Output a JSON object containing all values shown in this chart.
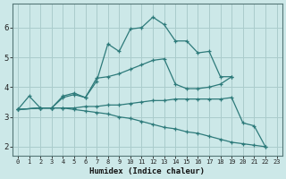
{
  "xlabel": "Humidex (Indice chaleur)",
  "xlim": [
    -0.5,
    23.5
  ],
  "ylim": [
    1.7,
    6.8
  ],
  "bg_color": "#cce8e8",
  "line_color": "#2d7a7a",
  "grid_color": "#aacccc",
  "series": [
    {
      "x": [
        0,
        1,
        2,
        3,
        4,
        5,
        6,
        7,
        8,
        9,
        10,
        11,
        12,
        13,
        14,
        15,
        16,
        17,
        18,
        19
      ],
      "y": [
        3.25,
        3.7,
        3.3,
        3.3,
        3.7,
        3.8,
        3.65,
        4.2,
        5.45,
        5.2,
        5.95,
        6.0,
        6.35,
        6.1,
        5.55,
        5.55,
        5.15,
        5.2,
        4.35,
        4.35
      ]
    },
    {
      "x": [
        0,
        2,
        3,
        4,
        5,
        6,
        7,
        8,
        9,
        10,
        11,
        12,
        13,
        14,
        15,
        16,
        17,
        18,
        19
      ],
      "y": [
        3.25,
        3.3,
        3.3,
        3.65,
        3.75,
        3.65,
        4.3,
        4.35,
        4.45,
        4.6,
        4.75,
        4.9,
        4.95,
        4.1,
        3.95,
        3.95,
        4.0,
        4.1,
        4.35
      ]
    },
    {
      "x": [
        0,
        2,
        3,
        4,
        5,
        6,
        7,
        8,
        9,
        10,
        11,
        12,
        13,
        14,
        15,
        16,
        17,
        18,
        19,
        20,
        21,
        22
      ],
      "y": [
        3.25,
        3.3,
        3.3,
        3.3,
        3.3,
        3.35,
        3.35,
        3.4,
        3.4,
        3.45,
        3.5,
        3.55,
        3.55,
        3.6,
        3.6,
        3.6,
        3.6,
        3.6,
        3.65,
        2.8,
        2.7,
        2.0
      ]
    },
    {
      "x": [
        0,
        2,
        3,
        4,
        5,
        6,
        7,
        8,
        9,
        10,
        11,
        12,
        13,
        14,
        15,
        16,
        17,
        18,
        19,
        20,
        21,
        22
      ],
      "y": [
        3.25,
        3.3,
        3.3,
        3.3,
        3.25,
        3.2,
        3.15,
        3.1,
        3.0,
        2.95,
        2.85,
        2.75,
        2.65,
        2.6,
        2.5,
        2.45,
        2.35,
        2.25,
        2.15,
        2.1,
        2.05,
        2.0
      ]
    }
  ],
  "yticks": [
    2,
    3,
    4,
    5,
    6
  ],
  "xticks": [
    0,
    1,
    2,
    3,
    4,
    5,
    6,
    7,
    8,
    9,
    10,
    11,
    12,
    13,
    14,
    15,
    16,
    17,
    18,
    19,
    20,
    21,
    22,
    23
  ],
  "xtick_labels": [
    "0",
    "1",
    "2",
    "3",
    "4",
    "5",
    "6",
    "7",
    "8",
    "9",
    "10",
    "11",
    "12",
    "13",
    "14",
    "15",
    "16",
    "17",
    "18",
    "19",
    "20",
    "21",
    "22",
    "23"
  ]
}
